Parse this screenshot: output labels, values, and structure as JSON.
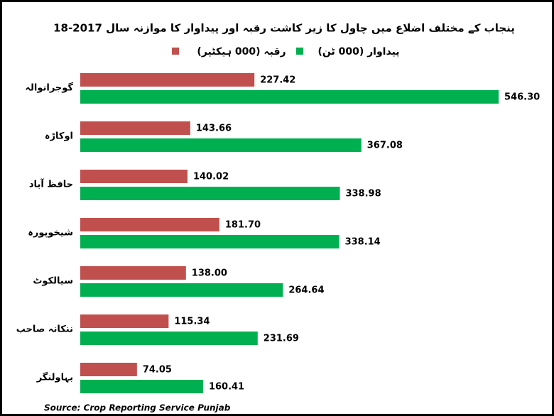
{
  "chart_data": {
    "type": "bar",
    "orientation": "horizontal",
    "title": "پنجاب کے مختلف اضلاع میں چاول کا زیر کاشت رقبہ اور پیداوار کا موازنہ سال 2017-18",
    "categories": [
      "گوجرانوالہ",
      "اوکاڑہ",
      "حافظ آباد",
      "شیخوپورہ",
      "سیالکوٹ",
      "ننکانہ صاحب",
      "بہاولنگر"
    ],
    "series": [
      {
        "name": "رقبہ (000 ہیکٹیر)",
        "color": "#c0504d",
        "values": [
          227.42,
          143.66,
          140.02,
          181.7,
          138,
          115.34,
          74.05
        ],
        "value_labels": [
          "227.42",
          "143.66",
          "140.02",
          "181.70",
          "138.00",
          "115.34",
          "74.05"
        ]
      },
      {
        "name": "پیداوار (000 ٹن)",
        "color": "#00b050",
        "values": [
          546.3,
          367.08,
          338.98,
          338.14,
          264.64,
          231.69,
          160.41
        ],
        "value_labels": [
          "546.30",
          "367.08",
          "338.98",
          "338.14",
          "264.64",
          "231.69",
          "160.41"
        ]
      }
    ],
    "xlim": [
      0,
      550
    ],
    "source": "Source: Crop Reporting Service Punjab"
  }
}
